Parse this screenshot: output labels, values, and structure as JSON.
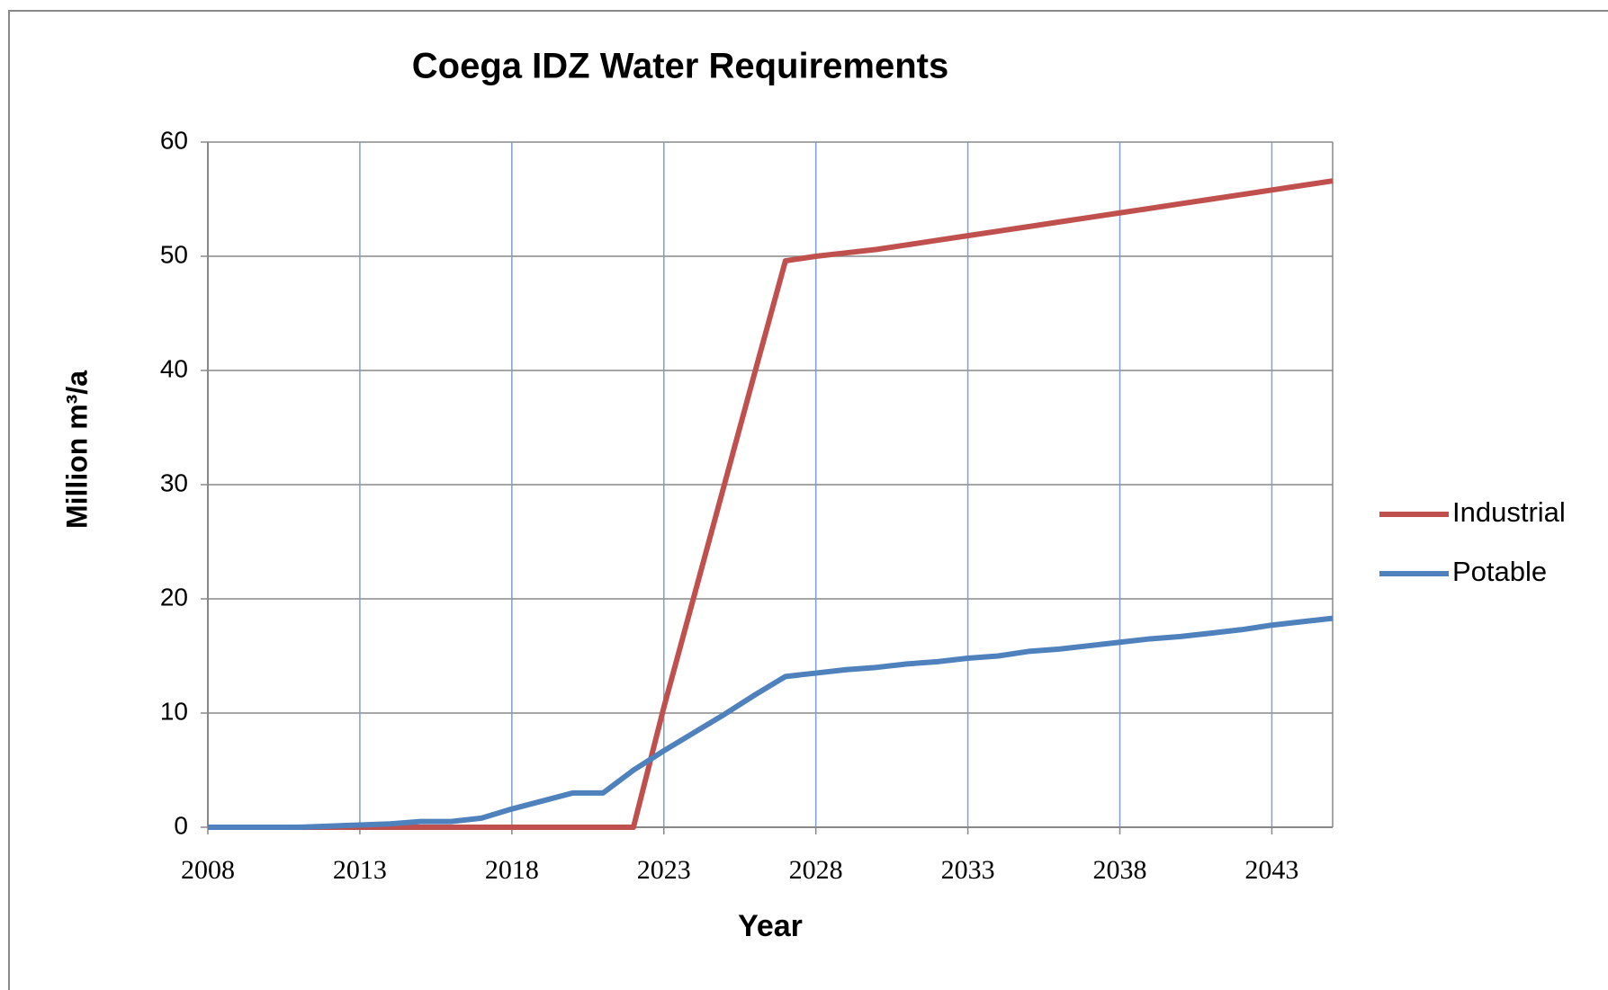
{
  "chart_data": {
    "type": "line",
    "title": "Coega IDZ Water Requirements",
    "x_label": "Year",
    "y_label": "Million m³/a",
    "x": [
      2008,
      2009,
      2010,
      2011,
      2012,
      2013,
      2014,
      2015,
      2016,
      2017,
      2018,
      2019,
      2020,
      2021,
      2022,
      2023,
      2024,
      2025,
      2026,
      2027,
      2028,
      2029,
      2030,
      2031,
      2032,
      2033,
      2034,
      2035,
      2036,
      2037,
      2038,
      2039,
      2040,
      2041,
      2042,
      2043,
      2044,
      2045
    ],
    "series": [
      {
        "name": "Industrial",
        "color": "#c0504d",
        "values": [
          0,
          0,
          0,
          0,
          0,
          0,
          0,
          0,
          0,
          0,
          0,
          0,
          0,
          0,
          0,
          10.5,
          20.3,
          30.1,
          39.9,
          49.6,
          50.0,
          50.3,
          50.6,
          51.0,
          51.4,
          51.8,
          52.2,
          52.6,
          53.0,
          53.4,
          53.8,
          54.2,
          54.6,
          55.0,
          55.4,
          55.8,
          56.2,
          56.6
        ]
      },
      {
        "name": "Potable",
        "color": "#4f81bd",
        "values": [
          0,
          0,
          0,
          0,
          0.1,
          0.2,
          0.3,
          0.5,
          0.5,
          0.8,
          1.6,
          2.3,
          3.0,
          3.0,
          5.0,
          6.7,
          8.3,
          9.9,
          11.6,
          13.2,
          13.5,
          13.8,
          14.0,
          14.3,
          14.5,
          14.8,
          15.0,
          15.4,
          15.6,
          15.9,
          16.2,
          16.5,
          16.7,
          17.0,
          17.3,
          17.7,
          18.0,
          18.3
        ]
      }
    ],
    "xlim": [
      2008,
      2045
    ],
    "xticks": [
      2008,
      2013,
      2018,
      2023,
      2028,
      2033,
      2038,
      2043
    ],
    "ylim": [
      0,
      60
    ],
    "yticks": [
      0,
      10,
      20,
      30,
      40,
      50,
      60
    ],
    "grid": true,
    "legend": "right"
  }
}
